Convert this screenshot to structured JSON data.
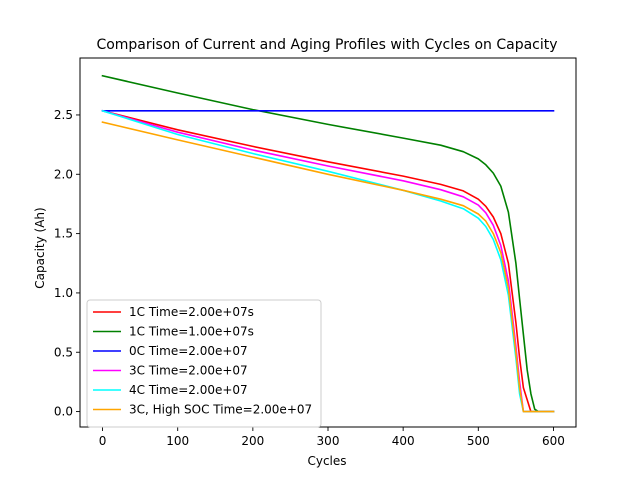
{
  "chart_data": {
    "type": "line",
    "title": "Comparison of Current and Aging Profiles with Cycles on Capacity",
    "xlabel": "Cycles",
    "ylabel": "Capacity (Ah)",
    "xlim": [
      -30,
      630
    ],
    "ylim": [
      -0.13,
      2.98
    ],
    "xticks": [
      0,
      100,
      200,
      300,
      400,
      500,
      600
    ],
    "xtick_labels": [
      "0",
      "100",
      "200",
      "300",
      "400",
      "500",
      "600"
    ],
    "yticks": [
      0.0,
      0.5,
      1.0,
      1.5,
      2.0,
      2.5
    ],
    "ytick_labels": [
      "0.0",
      "0.5",
      "1.0",
      "1.5",
      "2.0",
      "2.5"
    ],
    "grid": false,
    "legend_position": "lower-left",
    "series": [
      {
        "name": "1C Time=2.00e+07s",
        "color": "#ff0000",
        "x": [
          0,
          100,
          200,
          300,
          400,
          450,
          480,
          500,
          510,
          520,
          530,
          540,
          550,
          555,
          560,
          570,
          580,
          600
        ],
        "y": [
          2.535,
          2.375,
          2.235,
          2.105,
          1.985,
          1.915,
          1.86,
          1.79,
          1.73,
          1.64,
          1.5,
          1.25,
          0.75,
          0.45,
          0.2,
          0.0,
          0.0,
          0.0
        ]
      },
      {
        "name": "1C Time=1.00e+07s",
        "color": "#008000",
        "x": [
          0,
          100,
          200,
          300,
          400,
          450,
          480,
          500,
          510,
          520,
          530,
          540,
          550,
          555,
          560,
          565,
          570,
          575,
          580,
          600
        ],
        "y": [
          2.83,
          2.685,
          2.545,
          2.42,
          2.305,
          2.245,
          2.19,
          2.13,
          2.08,
          2.01,
          1.9,
          1.68,
          1.25,
          0.95,
          0.65,
          0.35,
          0.15,
          0.02,
          0.0,
          0.0
        ]
      },
      {
        "name": "0C Time=2.00e+07",
        "color": "#0000ff",
        "x": [
          0,
          600
        ],
        "y": [
          2.535,
          2.535
        ]
      },
      {
        "name": "3C Time=2.00e+07",
        "color": "#ff00ff",
        "x": [
          0,
          100,
          200,
          300,
          400,
          450,
          480,
          500,
          510,
          520,
          530,
          540,
          550,
          555,
          560,
          570,
          600
        ],
        "y": [
          2.535,
          2.355,
          2.205,
          2.07,
          1.945,
          1.87,
          1.81,
          1.74,
          1.675,
          1.57,
          1.4,
          1.1,
          0.55,
          0.25,
          0.0,
          0.0,
          0.0
        ]
      },
      {
        "name": "4C Time=2.00e+07",
        "color": "#00ffff",
        "x": [
          0,
          100,
          200,
          300,
          400,
          450,
          480,
          500,
          510,
          520,
          530,
          540,
          550,
          555,
          560,
          570,
          600
        ],
        "y": [
          2.535,
          2.335,
          2.175,
          2.025,
          1.865,
          1.775,
          1.71,
          1.63,
          1.56,
          1.45,
          1.28,
          0.98,
          0.45,
          0.15,
          0.0,
          0.0,
          0.0
        ]
      },
      {
        "name": "3C, High SOC Time=2.00e+07",
        "color": "#ffa500",
        "x": [
          0,
          100,
          200,
          300,
          400,
          450,
          480,
          500,
          510,
          520,
          530,
          540,
          550,
          555,
          560,
          570,
          600
        ],
        "y": [
          2.44,
          2.29,
          2.145,
          2.0,
          1.865,
          1.79,
          1.735,
          1.665,
          1.605,
          1.5,
          1.34,
          1.04,
          0.5,
          0.2,
          0.0,
          0.0,
          0.0
        ]
      }
    ]
  }
}
